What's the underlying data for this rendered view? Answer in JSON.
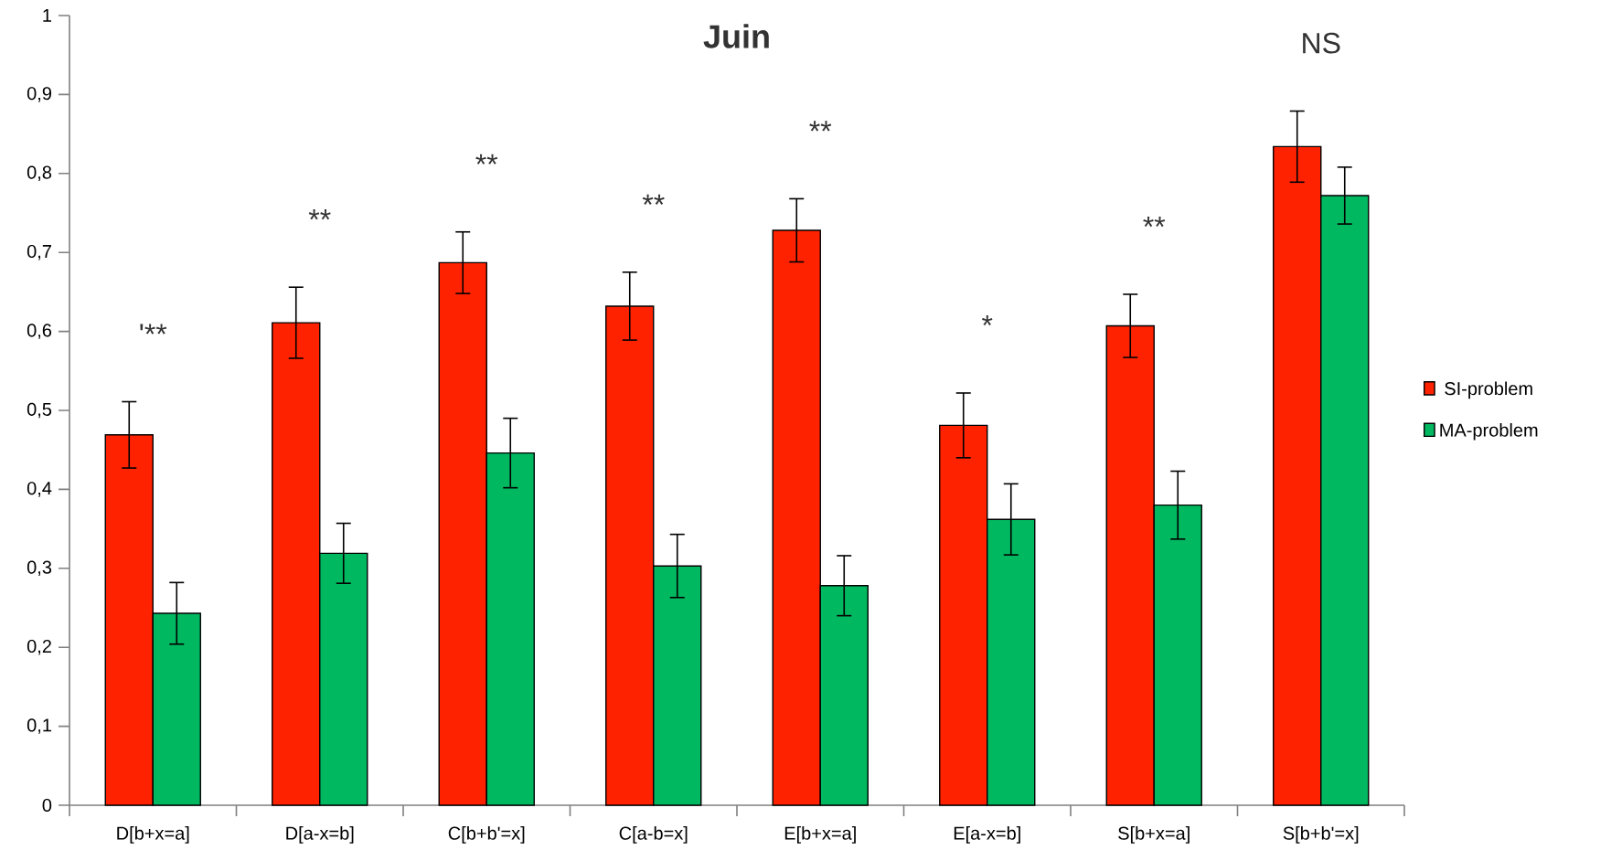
{
  "chart_data": {
    "type": "bar",
    "title": "Juin",
    "categories": [
      "D[b+x=a]",
      "D[a-x=b]",
      "C[b+b'=x]",
      "C[a-b=x]",
      "E[b+x=a]",
      "E[a-x=b]",
      "S[b+x=a]",
      "S[b+b'=x]"
    ],
    "series": [
      {
        "name": "SI-problem",
        "color": "#ff2200",
        "values": [
          0.469,
          0.611,
          0.687,
          0.632,
          0.728,
          0.481,
          0.607,
          0.834
        ],
        "errors": [
          0.042,
          0.045,
          0.039,
          0.043,
          0.04,
          0.041,
          0.04,
          0.045
        ]
      },
      {
        "name": "MA-problem",
        "color": "#00b860",
        "values": [
          0.243,
          0.319,
          0.446,
          0.303,
          0.278,
          0.362,
          0.38,
          0.772
        ],
        "errors": [
          0.039,
          0.038,
          0.044,
          0.04,
          0.038,
          0.045,
          0.043,
          0.036
        ]
      }
    ],
    "ylim": [
      0,
      1
    ],
    "yticks": [
      0,
      {
        "value": 0.1,
        "label": "0,1"
      },
      {
        "value": 0.2,
        "label": "0,2"
      },
      {
        "value": 0.3,
        "label": "0,3"
      },
      {
        "value": 0.4,
        "label": "0,4"
      },
      {
        "value": 0.5,
        "label": "0,5"
      },
      {
        "value": 0.6,
        "label": "0,6"
      },
      {
        "value": 0.7,
        "label": "0,7"
      },
      {
        "value": 0.8,
        "label": "0,8"
      },
      {
        "value": 0.9,
        "label": "0,9"
      },
      1
    ],
    "annotations": [
      "'**",
      "**",
      "**",
      "**",
      "**",
      "*",
      "**",
      "NS"
    ],
    "grid": false,
    "legend": "right"
  }
}
